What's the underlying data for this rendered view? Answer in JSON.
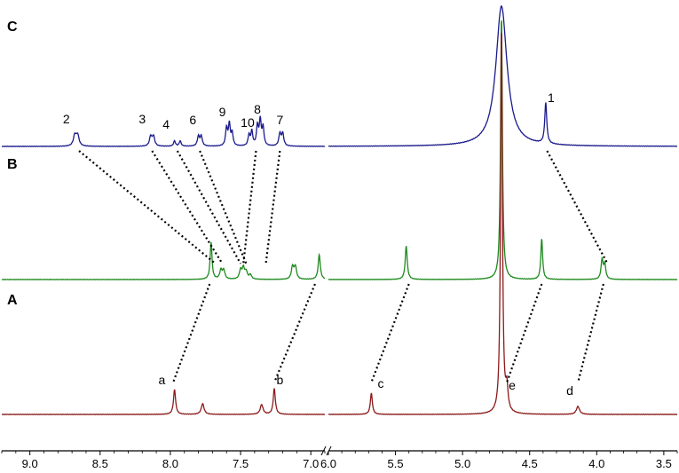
{
  "chart_data": {
    "type": "line",
    "title": "",
    "xlabel": "",
    "ylabel": "",
    "x_reversed": true,
    "axis_break": [
      6.0,
      6.9
    ],
    "xlim_left": [
      9.2,
      6.9
    ],
    "xlim_right": [
      6.0,
      3.4
    ],
    "grid": false,
    "x_ticks": [
      {
        "value": 9.0,
        "label": "9.0"
      },
      {
        "value": 8.5,
        "label": "8.5"
      },
      {
        "value": 8.0,
        "label": "8.0"
      },
      {
        "value": 7.5,
        "label": "7.5"
      },
      {
        "value": 7.0,
        "label": "7.0"
      },
      {
        "value": 6.0,
        "label": "6.0"
      },
      {
        "value": 5.5,
        "label": "5.5"
      },
      {
        "value": 5.0,
        "label": "5.0"
      },
      {
        "value": 4.5,
        "label": "4.5"
      },
      {
        "value": 4.0,
        "label": "4.0"
      },
      {
        "value": 3.5,
        "label": "3.5"
      }
    ],
    "series": [
      {
        "name": "",
        "panel": "C",
        "color": "#1a1a8c",
        "peaks": [
          {
            "x": 8.68,
            "h": 12,
            "w": 0.012
          },
          {
            "x": 8.66,
            "h": 12,
            "w": 0.012
          },
          {
            "x": 8.14,
            "h": 11,
            "w": 0.01
          },
          {
            "x": 8.12,
            "h": 11,
            "w": 0.01
          },
          {
            "x": 7.97,
            "h": 6,
            "w": 0.008
          },
          {
            "x": 7.93,
            "h": 6,
            "w": 0.008
          },
          {
            "x": 7.8,
            "h": 11,
            "w": 0.009
          },
          {
            "x": 7.78,
            "h": 11,
            "w": 0.009
          },
          {
            "x": 7.6,
            "h": 20,
            "w": 0.008
          },
          {
            "x": 7.58,
            "h": 24,
            "w": 0.008
          },
          {
            "x": 7.56,
            "h": 14,
            "w": 0.008
          },
          {
            "x": 7.44,
            "h": 12,
            "w": 0.008
          },
          {
            "x": 7.42,
            "h": 16,
            "w": 0.008
          },
          {
            "x": 7.38,
            "h": 22,
            "w": 0.008
          },
          {
            "x": 7.36,
            "h": 28,
            "w": 0.008
          },
          {
            "x": 7.34,
            "h": 20,
            "w": 0.008
          },
          {
            "x": 7.22,
            "h": 14,
            "w": 0.009
          },
          {
            "x": 7.2,
            "h": 14,
            "w": 0.009
          },
          {
            "x": 4.71,
            "h": 158,
            "w": 0.05
          },
          {
            "x": 4.38,
            "h": 46,
            "w": 0.009
          }
        ]
      },
      {
        "name": "",
        "panel": "B",
        "color": "#1e8a1e",
        "peaks": [
          {
            "x": 7.71,
            "h": 42,
            "w": 0.008
          },
          {
            "x": 7.64,
            "h": 10,
            "w": 0.01
          },
          {
            "x": 7.62,
            "h": 10,
            "w": 0.01
          },
          {
            "x": 7.5,
            "h": 10,
            "w": 0.01
          },
          {
            "x": 7.48,
            "h": 12,
            "w": 0.01
          },
          {
            "x": 7.46,
            "h": 8,
            "w": 0.01
          },
          {
            "x": 7.43,
            "h": 5,
            "w": 0.01
          },
          {
            "x": 7.13,
            "h": 14,
            "w": 0.01
          },
          {
            "x": 7.11,
            "h": 14,
            "w": 0.01
          },
          {
            "x": 6.94,
            "h": 28,
            "w": 0.009
          },
          {
            "x": 5.42,
            "h": 38,
            "w": 0.009
          },
          {
            "x": 4.71,
            "h": 300,
            "w": 0.008
          },
          {
            "x": 4.41,
            "h": 46,
            "w": 0.008
          },
          {
            "x": 3.96,
            "h": 22,
            "w": 0.009
          },
          {
            "x": 3.94,
            "h": 16,
            "w": 0.009
          }
        ]
      },
      {
        "name": "",
        "panel": "A",
        "color": "#8b1a1a",
        "peaks": [
          {
            "x": 7.97,
            "h": 28,
            "w": 0.009
          },
          {
            "x": 7.77,
            "h": 12,
            "w": 0.012
          },
          {
            "x": 7.35,
            "h": 11,
            "w": 0.012
          },
          {
            "x": 7.26,
            "h": 29,
            "w": 0.009
          },
          {
            "x": 5.68,
            "h": 24,
            "w": 0.009
          },
          {
            "x": 4.71,
            "h": 440,
            "w": 0.008
          },
          {
            "x": 4.67,
            "h": 26,
            "w": 0.01
          },
          {
            "x": 4.14,
            "h": 9,
            "w": 0.014
          }
        ]
      }
    ],
    "panel_labels": [
      {
        "text": "C",
        "panel": "C"
      },
      {
        "text": "B",
        "panel": "B"
      },
      {
        "text": "A",
        "panel": "A"
      }
    ],
    "peak_labels": [
      {
        "text": "2",
        "x": 8.74,
        "panel": "C",
        "dy": 22
      },
      {
        "text": "3",
        "x": 8.2,
        "panel": "C",
        "dy": 22
      },
      {
        "text": "4",
        "x": 8.03,
        "panel": "C",
        "dy": 16
      },
      {
        "text": "6",
        "x": 7.84,
        "panel": "C",
        "dy": 21
      },
      {
        "text": "9",
        "x": 7.63,
        "panel": "C",
        "dy": 30
      },
      {
        "text": "10",
        "x": 7.45,
        "panel": "C",
        "dy": 18
      },
      {
        "text": "8",
        "x": 7.38,
        "panel": "C",
        "dy": 33
      },
      {
        "text": "7",
        "x": 7.22,
        "panel": "C",
        "dy": 21
      },
      {
        "text": "1",
        "x": 4.34,
        "panel": "C",
        "dy": 46
      },
      {
        "text": "a",
        "x": 8.06,
        "panel": "A",
        "dy": 30
      },
      {
        "text": "b",
        "x": 7.22,
        "panel": "A",
        "dy": 30
      },
      {
        "text": "c",
        "x": 5.61,
        "panel": "A",
        "dy": 26
      },
      {
        "text": "e",
        "x": 4.63,
        "panel": "A",
        "dy": 24
      },
      {
        "text": "d",
        "x": 4.2,
        "panel": "A",
        "dy": 18
      }
    ],
    "correlation_lines": [
      {
        "from": 8.65,
        "to": 7.68,
        "upper": "C",
        "lower": "B"
      },
      {
        "from": 8.13,
        "to": 7.63,
        "upper": "C",
        "lower": "B"
      },
      {
        "from": 7.95,
        "to": 7.5,
        "upper": "C",
        "lower": "B"
      },
      {
        "from": 7.79,
        "to": 7.46,
        "upper": "C",
        "lower": "B"
      },
      {
        "from": 7.39,
        "to": 7.48,
        "upper": "C",
        "lower": "B"
      },
      {
        "from": 7.22,
        "to": 7.32,
        "upper": "C",
        "lower": "B"
      },
      {
        "from": 4.37,
        "to": 3.92,
        "upper": "C",
        "lower": "B"
      },
      {
        "from": 7.72,
        "to": 7.98,
        "upper": "B",
        "lower": "A"
      },
      {
        "from": 6.97,
        "to": 7.26,
        "upper": "B",
        "lower": "A"
      },
      {
        "from": 5.4,
        "to": 5.68,
        "upper": "B",
        "lower": "A"
      },
      {
        "from": 4.41,
        "to": 4.67,
        "upper": "B",
        "lower": "A"
      },
      {
        "from": 3.95,
        "to": 4.14,
        "upper": "B",
        "lower": "A"
      }
    ]
  }
}
